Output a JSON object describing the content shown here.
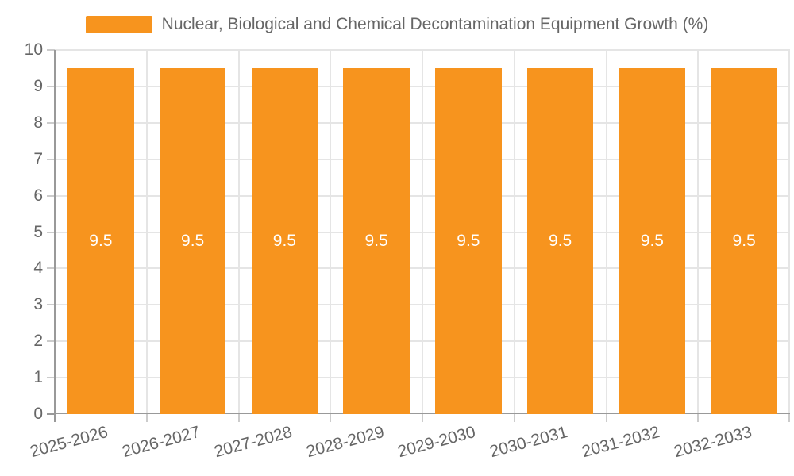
{
  "legend": {
    "label": "Nuclear, Biological and Chemical Decontamination Equipment Growth (%)"
  },
  "colors": {
    "bar": "#F7941E",
    "bar_label": "#FFFFFF",
    "axis_line": "#999999",
    "grid_line": "#E5E5E5",
    "tick_mark": "#CCCCCC",
    "text": "#666666",
    "background": "#FFFFFF"
  },
  "chart_data": {
    "type": "bar",
    "title": "Nuclear, Biological and Chemical Decontamination Equipment Growth (%)",
    "legend_entries": [
      "Nuclear, Biological and Chemical Decontamination Equipment Growth (%)"
    ],
    "legend_position": "top",
    "categories": [
      "2025-2026",
      "2026-2027",
      "2027-2028",
      "2028-2029",
      "2029-2030",
      "2030-2031",
      "2031-2032",
      "2032-2033"
    ],
    "values": [
      9.5,
      9.5,
      9.5,
      9.5,
      9.5,
      9.5,
      9.5,
      9.5
    ],
    "value_labels": [
      "9.5",
      "9.5",
      "9.5",
      "9.5",
      "9.5",
      "9.5",
      "9.5",
      "9.5"
    ],
    "xlabel": "",
    "ylabel": "",
    "ylim": [
      0,
      10
    ],
    "yticks": [
      0,
      1,
      2,
      3,
      4,
      5,
      6,
      7,
      8,
      9,
      10
    ],
    "grid": true
  }
}
